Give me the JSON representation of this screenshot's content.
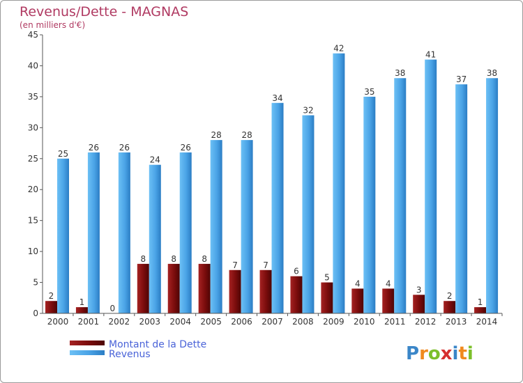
{
  "chart_data": {
    "type": "bar",
    "title": "Revenus/Dette - MAGNAS",
    "subtitle": "(en milliers d'€)",
    "categories": [
      "2000",
      "2001",
      "2002",
      "2003",
      "2004",
      "2005",
      "2006",
      "2007",
      "2008",
      "2009",
      "2010",
      "2011",
      "2012",
      "2013",
      "2014"
    ],
    "series": [
      {
        "name": "Montant de la Dette",
        "color": "#7a0c0c",
        "values": [
          2,
          1,
          0,
          8,
          8,
          8,
          7,
          7,
          6,
          5,
          4,
          4,
          3,
          2,
          1
        ]
      },
      {
        "name": "Revenus",
        "color": "#4aa3e6",
        "values": [
          25,
          26,
          26,
          24,
          26,
          28,
          28,
          34,
          32,
          42,
          35,
          38,
          41,
          37,
          38
        ]
      }
    ],
    "ylim": [
      0,
      45
    ],
    "yticks": [
      0,
      5,
      10,
      15,
      20,
      25,
      30,
      35,
      40,
      45
    ],
    "grid": false,
    "legend_position": "bottom-left"
  },
  "logo": {
    "letters": [
      {
        "ch": "P",
        "color": "#3a86c8"
      },
      {
        "ch": "r",
        "color": "#f08a1e"
      },
      {
        "ch": "o",
        "color": "#7cbf2a"
      },
      {
        "ch": "x",
        "color": "#d62f2f"
      },
      {
        "ch": "i",
        "color": "#3a86c8"
      },
      {
        "ch": "t",
        "color": "#f08a1e"
      },
      {
        "ch": "i",
        "color": "#7cbf2a"
      }
    ]
  }
}
